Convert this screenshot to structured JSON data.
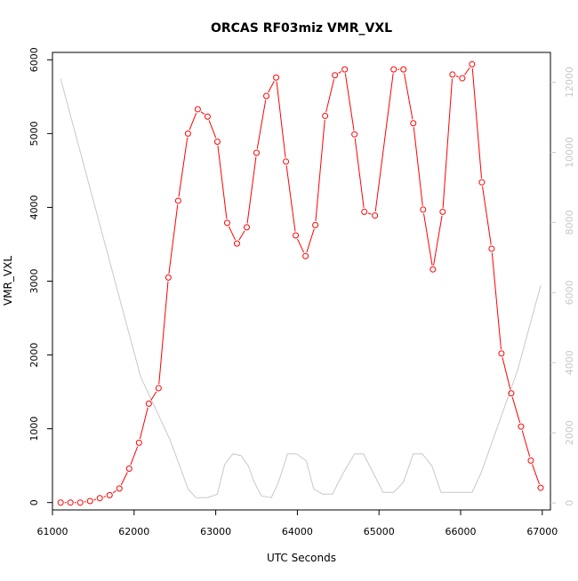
{
  "chart_data": {
    "type": "line",
    "title": "ORCAS RF03miz VMR_VXL",
    "xlabel": "UTC Seconds",
    "ylabel": "VMR_VXL",
    "xlim": [
      61000,
      67100
    ],
    "ylim": [
      -100,
      6100
    ],
    "y2lim": [
      -200,
      12850
    ],
    "x_ticks": [
      61000,
      62000,
      63000,
      64000,
      65000,
      66000,
      67000
    ],
    "y_ticks": [
      0,
      1000,
      2000,
      3000,
      4000,
      5000,
      6000
    ],
    "y2_ticks": [
      0,
      2000,
      4000,
      6000,
      8000,
      10000,
      12000
    ],
    "colors": {
      "primary": "#ff0000",
      "secondary": "#c8c8c8"
    },
    "series": [
      {
        "axis": "left",
        "marker": "open-circle",
        "x": [
          61100,
          61220,
          61340,
          61460,
          61580,
          61700,
          61820,
          61940,
          62060,
          62180,
          62300,
          62420,
          62540,
          62660,
          62780,
          62900,
          63020,
          63140,
          63260,
          63380,
          63500,
          63620,
          63740,
          63860,
          63980,
          64100,
          64220,
          64340,
          64460,
          64580,
          64700,
          64820,
          64950,
          65180,
          65300,
          65420,
          65540,
          65660,
          65780,
          65900,
          66020,
          66140,
          66260,
          66380,
          66500,
          66620,
          66740,
          66860,
          66980
        ],
        "y": [
          0,
          0,
          0,
          20,
          60,
          100,
          190,
          460,
          810,
          1340,
          1550,
          3050,
          4090,
          5000,
          5330,
          5230,
          4890,
          3790,
          3510,
          3730,
          4740,
          5510,
          5760,
          4620,
          3620,
          3340,
          3760,
          5240,
          5790,
          5870,
          4990,
          3940,
          3890,
          5870,
          5870,
          5140,
          3970,
          3160,
          3940,
          5800,
          5750,
          5940,
          4340,
          3440,
          2020,
          1480,
          1030,
          570,
          200
        ]
      },
      {
        "axis": "right",
        "marker": "none",
        "x": [
          61100,
          62080,
          62440,
          62560,
          62660,
          62760,
          62900,
          63020,
          63110,
          63210,
          63310,
          63400,
          63470,
          63560,
          63680,
          63770,
          63880,
          63990,
          64110,
          64200,
          64310,
          64430,
          64550,
          64700,
          64810,
          64920,
          65050,
          65180,
          65300,
          65420,
          65530,
          65650,
          65760,
          65880,
          66140,
          66250,
          66700,
          66980
        ],
        "y": [
          12100,
          3600,
          1800,
          1050,
          400,
          150,
          150,
          250,
          1100,
          1400,
          1350,
          1050,
          600,
          200,
          150,
          600,
          1400,
          1400,
          1200,
          400,
          250,
          250,
          800,
          1400,
          1400,
          900,
          300,
          300,
          600,
          1400,
          1400,
          1050,
          300,
          300,
          300,
          850,
          3800,
          6200
        ]
      }
    ]
  }
}
